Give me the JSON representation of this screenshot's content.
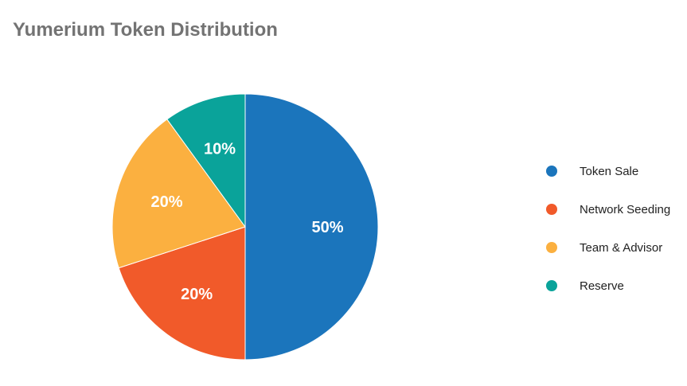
{
  "chart_data": {
    "type": "pie",
    "title": "Yumerium Token Distribution",
    "slices": [
      {
        "name": "Token Sale",
        "value": 50,
        "label": "50%",
        "color": "#1b75bc"
      },
      {
        "name": "Network Seeding",
        "value": 20,
        "label": "20%",
        "color": "#f15a2a"
      },
      {
        "name": "Team & Advisor",
        "value": 20,
        "label": "20%",
        "color": "#fbb040"
      },
      {
        "name": "Reserve",
        "value": 10,
        "label": "10%",
        "color": "#0aa39a"
      }
    ],
    "legend_position": "right"
  }
}
